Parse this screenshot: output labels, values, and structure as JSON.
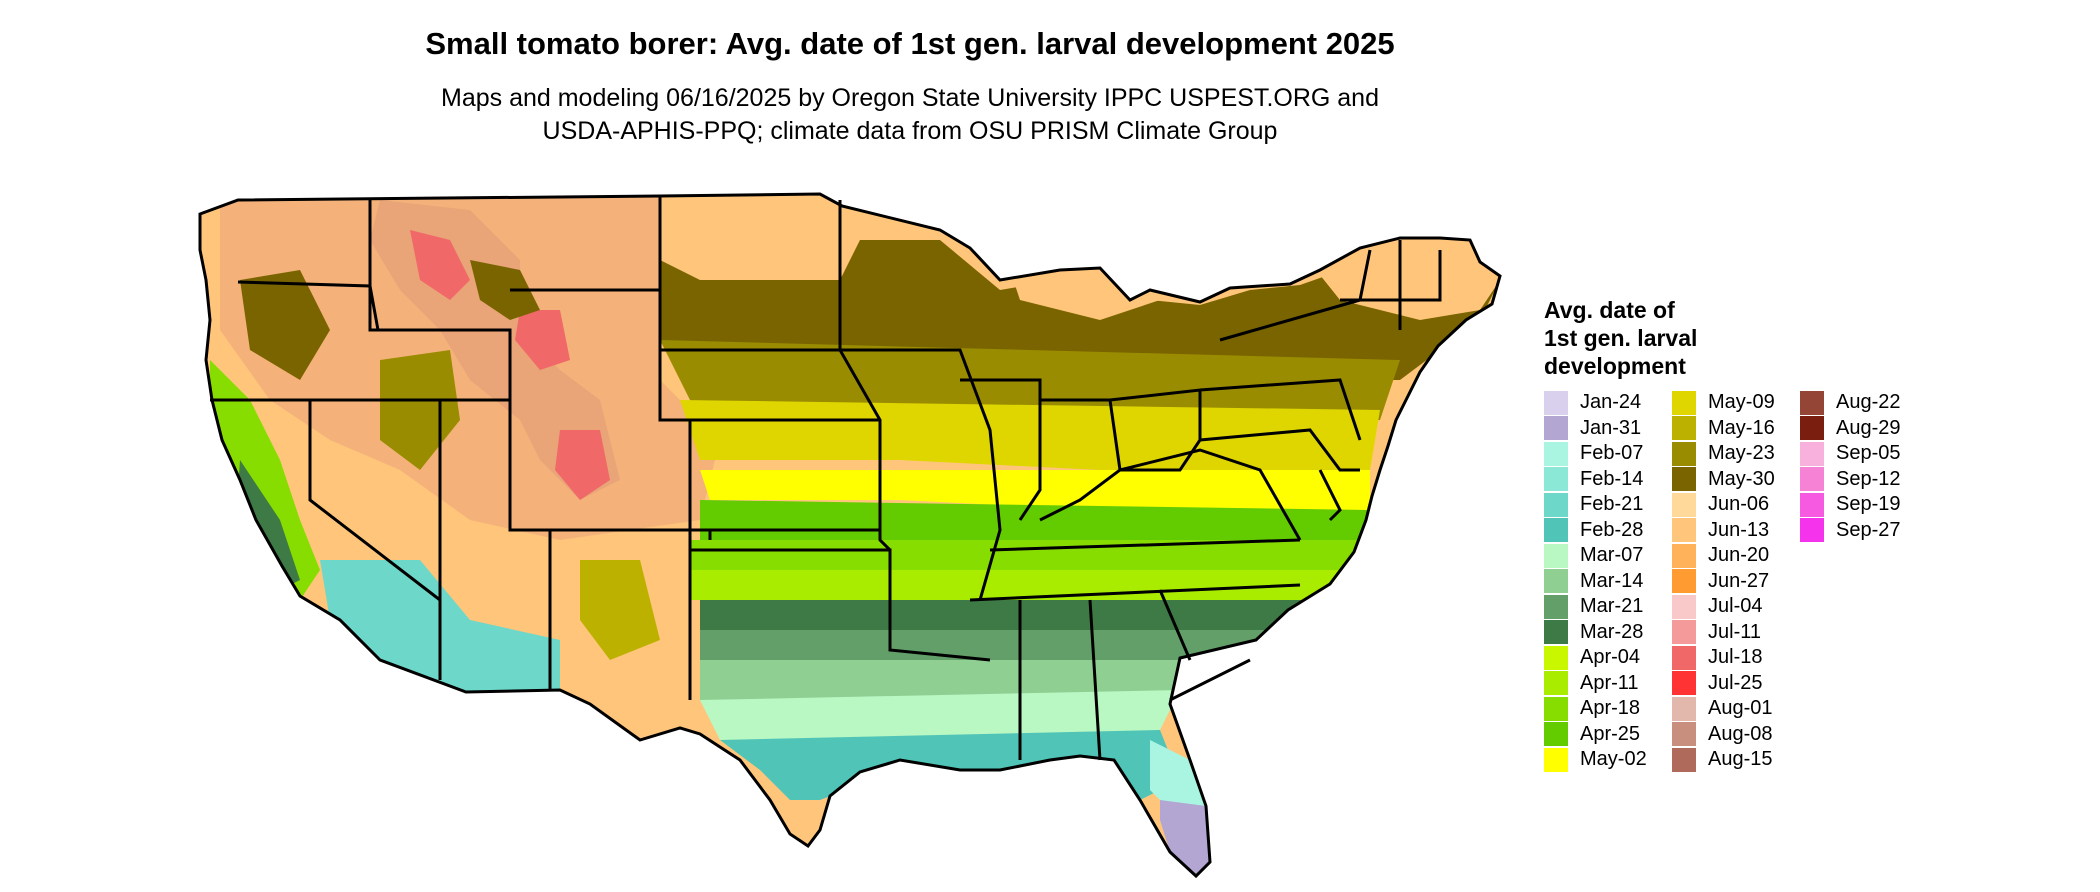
{
  "title": "Small tomato borer: Avg. date of 1st gen. larval development 2025",
  "subtitle": [
    "Maps and modeling 06/16/2025 by Oregon State University IPPC USPEST.ORG and",
    "USDA-APHIS-PPQ; climate data from OSU PRISM Climate Group"
  ],
  "legend": {
    "title_lines": [
      "Avg. date of",
      "1st gen. larval",
      "development"
    ],
    "columns": [
      [
        {
          "label": "Jan-24",
          "color": "#d8d0ec"
        },
        {
          "label": "Jan-31",
          "color": "#b3a6d3"
        },
        {
          "label": "Feb-07",
          "color": "#a9f5e2"
        },
        {
          "label": "Feb-14",
          "color": "#8ce8d6"
        },
        {
          "label": "Feb-21",
          "color": "#6dd7c9"
        },
        {
          "label": "Feb-28",
          "color": "#4fc4b7"
        },
        {
          "label": "Mar-07",
          "color": "#b9f7c3"
        },
        {
          "label": "Mar-14",
          "color": "#8fcf92"
        },
        {
          "label": "Mar-21",
          "color": "#629f69"
        },
        {
          "label": "Mar-28",
          "color": "#3e7a45"
        },
        {
          "label": "Apr-04",
          "color": "#c8f700"
        },
        {
          "label": "Apr-11",
          "color": "#a9ec00"
        },
        {
          "label": "Apr-18",
          "color": "#88dd00"
        },
        {
          "label": "Apr-25",
          "color": "#63cc00"
        },
        {
          "label": "May-02",
          "color": "#ffff00"
        }
      ],
      [
        {
          "label": "May-09",
          "color": "#dfd600"
        },
        {
          "label": "May-16",
          "color": "#bdb100"
        },
        {
          "label": "May-23",
          "color": "#9a8c00"
        },
        {
          "label": "May-30",
          "color": "#7a6400"
        },
        {
          "label": "Jun-06",
          "color": "#ffd999"
        },
        {
          "label": "Jun-13",
          "color": "#ffc57a"
        },
        {
          "label": "Jun-20",
          "color": "#ffb25a"
        },
        {
          "label": "Jun-27",
          "color": "#ff9b30"
        },
        {
          "label": "Jul-04",
          "color": "#f9c9c9"
        },
        {
          "label": "Jul-11",
          "color": "#f59a9a"
        },
        {
          "label": "Jul-18",
          "color": "#f06868"
        },
        {
          "label": "Jul-25",
          "color": "#ff3333"
        },
        {
          "label": "Aug-01",
          "color": "#e2b8ad"
        },
        {
          "label": "Aug-08",
          "color": "#c98f7e"
        },
        {
          "label": "Aug-15",
          "color": "#b06a5c"
        }
      ],
      [
        {
          "label": "Aug-22",
          "color": "#944535"
        },
        {
          "label": "Aug-29",
          "color": "#7a1f10"
        },
        {
          "label": "Sep-05",
          "color": "#f8b0dc"
        },
        {
          "label": "Sep-12",
          "color": "#f582d4"
        },
        {
          "label": "Sep-19",
          "color": "#f55ae0"
        },
        {
          "label": "Sep-27",
          "color": "#f533ec"
        }
      ]
    ]
  }
}
